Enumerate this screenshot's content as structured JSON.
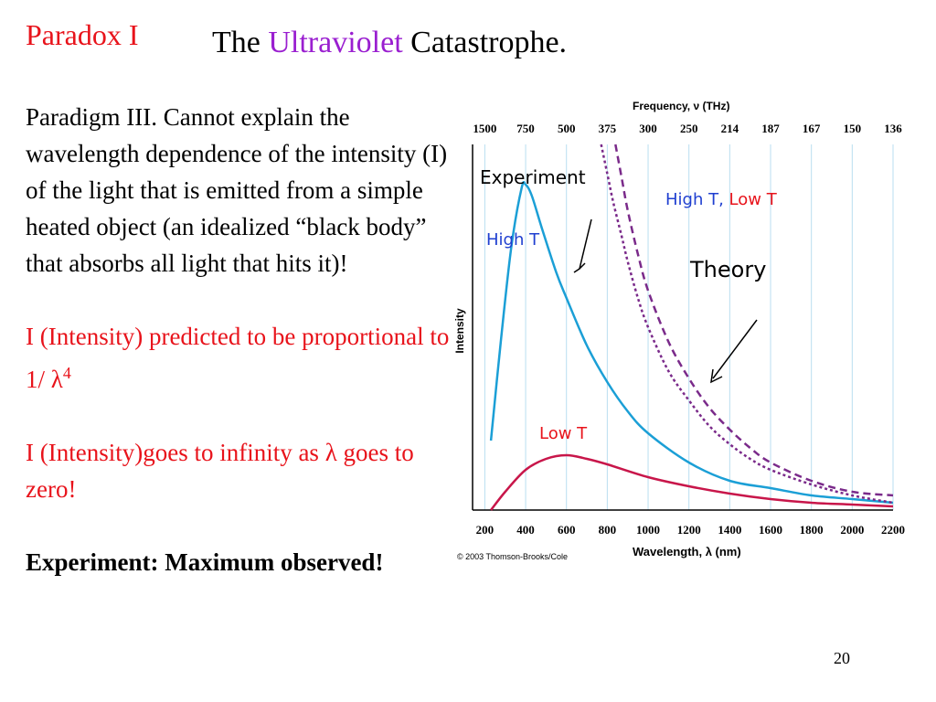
{
  "slide": {
    "label": "Paradox I",
    "title_pre": "The ",
    "title_highlight": "Ultraviolet",
    "title_post": " Catastrophe.",
    "para1": "Paradigm III.  Cannot explain the wavelength dependence of the intensity (I) of the light that is emitted from a simple heated object (an idealized “black body” that absorbs all light that hits it)!",
    "para2_a": "I (Intensity) predicted to be proportional to 1/ ",
    "para2_lambda": "λ",
    "para2_sup": "4",
    "para3_a": "I (Intensity)goes to infinity as ",
    "para3_lambda": "λ",
    "para3_b": " goes to zero!",
    "para4": "Experiment:  Maximum observed!",
    "page_number": "20",
    "colors": {
      "label_red": "#e8131b",
      "highlight_purple": "#9a1fd0"
    }
  },
  "chart_data": {
    "type": "line",
    "xlabel": "Wavelength, λ (nm)",
    "top_axis_label": "Frequency, ν (THz)",
    "ylabel": "Intensity",
    "copyright": "© 2003 Thomson-Brooks/Cole",
    "xlim": [
      140,
      2200
    ],
    "x_ticks": [
      200,
      400,
      600,
      800,
      1000,
      1200,
      1400,
      1600,
      1800,
      2000,
      2200
    ],
    "top_ticks": [
      {
        "label": "1500",
        "wavelength": 200
      },
      {
        "label": "750",
        "wavelength": 400
      },
      {
        "label": "500",
        "wavelength": 600
      },
      {
        "label": "375",
        "wavelength": 800
      },
      {
        "label": "300",
        "wavelength": 1000
      },
      {
        "label": "250",
        "wavelength": 1200
      },
      {
        "label": "214",
        "wavelength": 1400
      },
      {
        "label": "187",
        "wavelength": 1600
      },
      {
        "label": "167",
        "wavelength": 1800
      },
      {
        "label": "150",
        "wavelength": 2000
      },
      {
        "label": "136",
        "wavelength": 2200
      }
    ],
    "grid": "vertical",
    "ylim": [
      0,
      100
    ],
    "series": [
      {
        "style": "solid",
        "color": "#1b9fd6",
        "x": [
          230,
          280,
          330,
          380,
          400,
          430,
          480,
          550,
          600,
          700,
          800,
          900,
          1000,
          1200,
          1400,
          1600,
          1800,
          2000,
          2200
        ],
        "y": [
          19,
          47,
          72,
          88,
          89,
          86,
          77,
          65,
          58,
          45,
          35,
          27,
          21,
          13,
          8,
          6,
          4,
          3,
          2
        ]
      },
      {
        "style": "solid",
        "color": "#c8164a",
        "x": [
          230,
          300,
          400,
          500,
          600,
          700,
          800,
          1000,
          1200,
          1400,
          1600,
          1800,
          2000,
          2200
        ],
        "y": [
          0,
          5,
          11,
          14,
          15,
          14,
          12.5,
          9,
          6.5,
          4.5,
          3,
          2,
          1.5,
          1
        ]
      },
      {
        "style": "dashed",
        "color": "#7a2a8a",
        "x": [
          840,
          870,
          900,
          950,
          1000,
          1100,
          1200,
          1300,
          1400,
          1500,
          1600,
          1800,
          2000,
          2200
        ],
        "y": [
          100,
          91,
          82,
          70,
          60,
          46,
          36,
          28,
          22,
          17,
          13,
          8,
          5,
          4
        ]
      },
      {
        "style": "dotted",
        "color": "#7a2a8a",
        "x": [
          770,
          800,
          830,
          870,
          900,
          950,
          1000,
          1100,
          1200,
          1300,
          1400,
          1500,
          1600,
          1800,
          2000,
          2200
        ],
        "y": [
          100,
          92,
          84,
          75,
          68,
          58,
          50,
          38,
          30,
          23,
          18,
          14,
          11,
          7,
          4,
          2
        ]
      }
    ],
    "annotations": {
      "experiment": "Experiment",
      "high_t": "High T",
      "low_t": "Low T",
      "theory_high": "High T,",
      "theory_low": " Low T",
      "theory": "Theory",
      "high_t_color": "#1f3fd0",
      "low_t_color": "#e8131b"
    }
  }
}
